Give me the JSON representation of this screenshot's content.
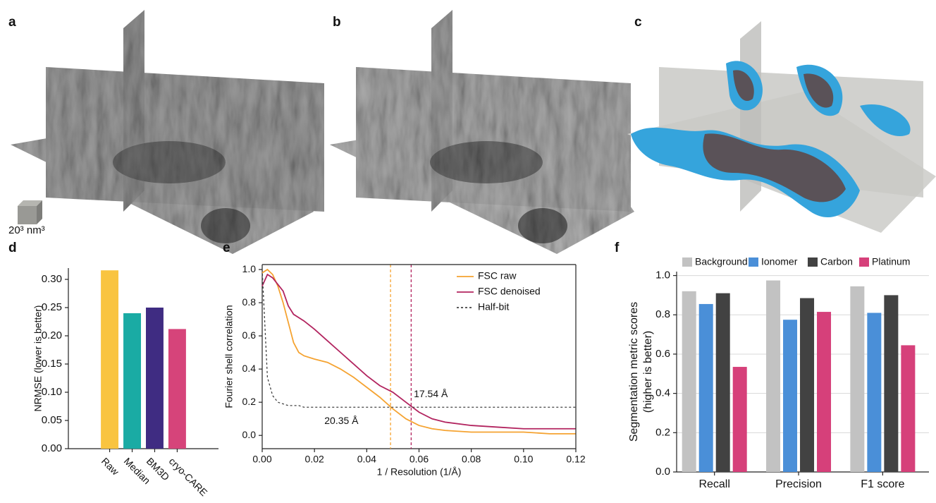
{
  "images": [
    {
      "label": "a"
    },
    {
      "label": "b"
    },
    {
      "label": "c"
    }
  ],
  "scale_label": "20³ nm³",
  "chart_data": [
    {
      "type": "bar",
      "label": "d",
      "ylabel": "NRMSE (lower is better)",
      "categories": [
        "Raw",
        "Median",
        "BM3D",
        "cryo-CARE"
      ],
      "values": [
        0.316,
        0.24,
        0.25,
        0.212
      ],
      "colors": [
        "#f9c440",
        "#1aaba4",
        "#3f2c82",
        "#d6447a"
      ],
      "ylim": [
        0,
        0.32
      ],
      "yticks": [
        {
          "value": 0,
          "label": "0.00"
        },
        0.05,
        {
          "value": 0.1,
          "label": "0.10"
        },
        0.15,
        {
          "value": 0.2,
          "label": "0.20"
        },
        0.25,
        {
          "value": 0.3,
          "label": "0.30"
        }
      ],
      "rotate_labels": 45,
      "grid": false
    },
    {
      "type": "line",
      "label": "e",
      "xlabel": "1 / Resolution (1/Å)",
      "ylabel": "Fourier shell correlation",
      "x": [
        0,
        0.002,
        0.004,
        0.006,
        0.008,
        0.01,
        0.012,
        0.014,
        0.016,
        0.02,
        0.025,
        0.03,
        0.035,
        0.04,
        0.045,
        0.05,
        0.055,
        0.06,
        0.065,
        0.07,
        0.08,
        0.09,
        0.1,
        0.11,
        0.12
      ],
      "series": [
        {
          "name": "FSC raw",
          "color": "#f5a331",
          "dash": false,
          "values": [
            0.98,
            1.0,
            0.97,
            0.9,
            0.8,
            0.68,
            0.56,
            0.5,
            0.48,
            0.46,
            0.44,
            0.4,
            0.35,
            0.29,
            0.23,
            0.16,
            0.1,
            0.06,
            0.04,
            0.03,
            0.02,
            0.02,
            0.02,
            0.01,
            0.01
          ]
        },
        {
          "name": "FSC denoised",
          "color": "#b2245f",
          "dash": false,
          "values": [
            0.9,
            0.97,
            0.95,
            0.91,
            0.87,
            0.78,
            0.73,
            0.71,
            0.69,
            0.64,
            0.57,
            0.5,
            0.43,
            0.36,
            0.3,
            0.26,
            0.2,
            0.14,
            0.1,
            0.08,
            0.06,
            0.05,
            0.04,
            0.04,
            0.04
          ]
        },
        {
          "name": "Half-bit",
          "color": "#444444",
          "dash": true,
          "values": [
            1.0,
            0.35,
            0.24,
            0.2,
            0.19,
            0.18,
            0.18,
            0.18,
            0.17,
            0.17,
            0.17,
            0.17,
            0.17,
            0.17,
            0.17,
            0.17,
            0.17,
            0.17,
            0.17,
            0.17,
            0.17,
            0.17,
            0.17,
            0.17,
            0.17
          ]
        }
      ],
      "vlines": [
        {
          "x": 0.0491,
          "color": "#f5a331"
        },
        {
          "x": 0.057,
          "color": "#b2245f"
        }
      ],
      "annotations": [
        {
          "text": "17.54 Å",
          "x": 0.058,
          "y": 0.247
        },
        {
          "text": "20.35 Å",
          "x": 0.0238,
          "y": 0.085
        }
      ],
      "xlim": [
        0,
        0.12
      ],
      "ylim": [
        -0.08,
        1.03
      ],
      "xticks": [
        {
          "value": 0,
          "label": "0.00"
        },
        0.02,
        0.04,
        0.06,
        0.08,
        {
          "value": 0.1,
          "label": "0.10"
        },
        0.12
      ],
      "yticks": [
        {
          "value": 0,
          "label": "0.0"
        },
        0.2,
        0.4,
        0.6,
        0.8,
        {
          "value": 1,
          "label": "1.0"
        }
      ],
      "grid": false
    },
    {
      "type": "grouped_bar",
      "label": "f",
      "ylabel": [
        "Segmentation metric scores",
        "(higher is better)"
      ],
      "categories": [
        "Recall",
        "Precision",
        "F1 score"
      ],
      "series": [
        {
          "name": "Background",
          "color": "#c2c2c2",
          "values": [
            0.92,
            0.975,
            0.945
          ]
        },
        {
          "name": "Ionomer",
          "color": "#4a8fd8",
          "values": [
            0.855,
            0.775,
            0.81
          ]
        },
        {
          "name": "Carbon",
          "color": "#424242",
          "values": [
            0.91,
            0.885,
            0.9
          ]
        },
        {
          "name": "Platinum",
          "color": "#d6407a",
          "values": [
            0.535,
            0.815,
            0.645
          ]
        }
      ],
      "ylim": [
        0,
        1.02
      ],
      "yticks": [
        {
          "value": 0,
          "label": "0.0"
        },
        0.2,
        0.4,
        0.6,
        0.8,
        {
          "value": 1,
          "label": "1.0"
        }
      ],
      "grid": true,
      "legend": "top"
    }
  ]
}
